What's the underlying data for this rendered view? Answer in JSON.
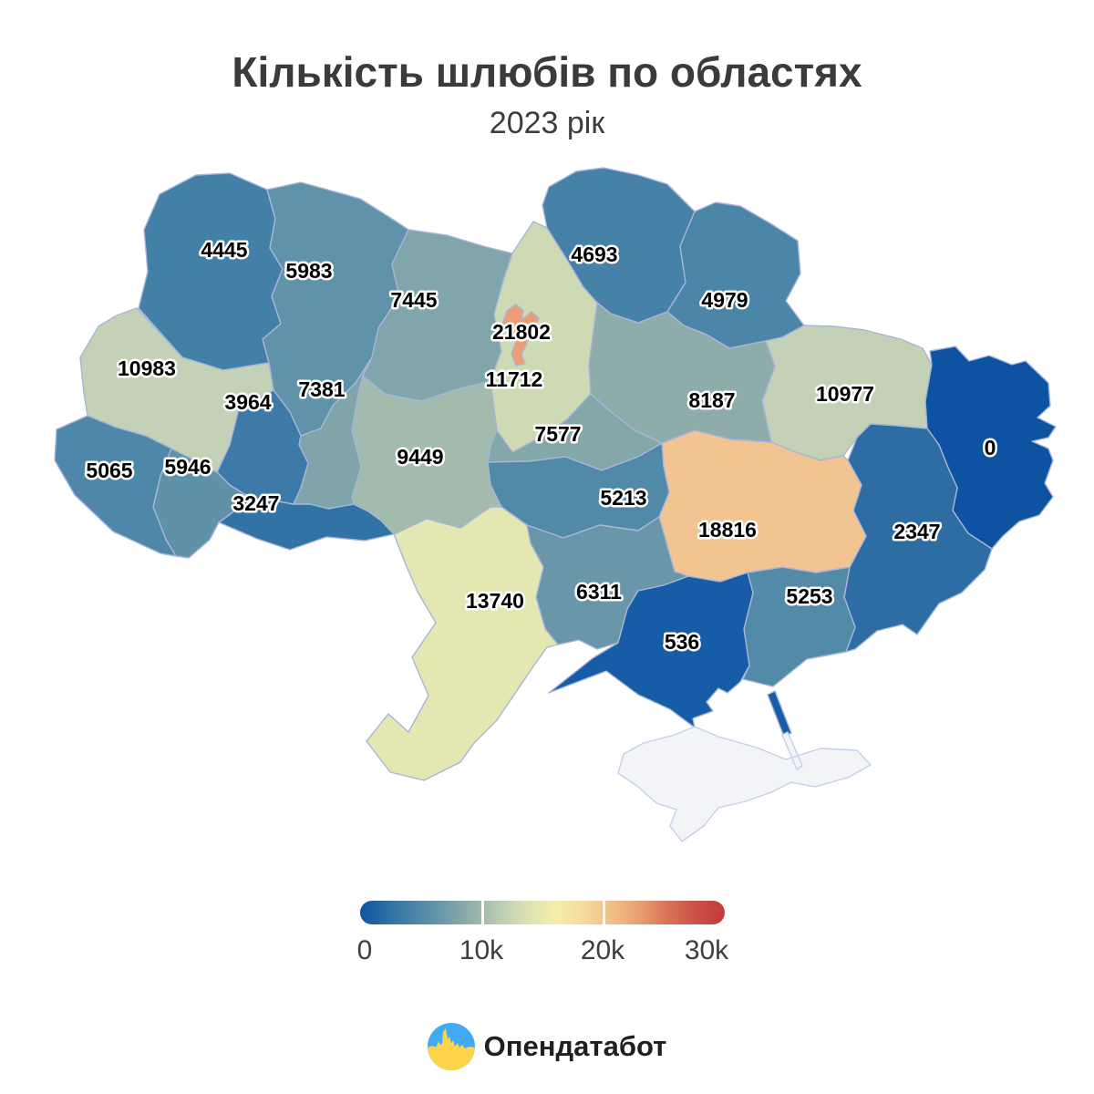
{
  "header": {
    "title": "Кількість шлюбів по областях",
    "subtitle": "2023 рік",
    "title_color": "#3b3b3b"
  },
  "legend": {
    "tick_labels": [
      "0",
      "10k",
      "20k",
      "30k"
    ],
    "gradient_stops": [
      "#0d54a1",
      "#2e6fa4",
      "#4d86a8",
      "#6d9aa9",
      "#93b0ab",
      "#bccdb4",
      "#dde3b1",
      "#f5eeaa",
      "#f5d9a0",
      "#f1bd88",
      "#e89d72",
      "#da7157",
      "#cb4f45",
      "#c13c3c"
    ]
  },
  "footer": {
    "brand": "Опендатабот",
    "logo": {
      "icon": "opendatabot-flag-pulse-icon",
      "blue": "#42aaf4",
      "yellow": "#ffd348"
    }
  },
  "chart_data": {
    "type": "choropleth",
    "title": "Кількість шлюбів по областях",
    "subtitle": "2023 рік",
    "colorbar": {
      "min": 0,
      "max": 30000,
      "ticks": [
        "0",
        "10k",
        "20k",
        "30k"
      ]
    },
    "border_color": "#a8b5d9",
    "regions": [
      {
        "id": "volyn",
        "value": 4445,
        "color": "#4380a8"
      },
      {
        "id": "rivne",
        "value": 5983,
        "color": "#6093a9"
      },
      {
        "id": "zhytomyr",
        "value": 7445,
        "color": "#80a5aa"
      },
      {
        "id": "kyiv_oblast",
        "value": 11712,
        "color": "#cedab4"
      },
      {
        "id": "kyiv_city",
        "value": 21802,
        "color": "#ed9d74"
      },
      {
        "id": "chernihiv",
        "value": 4693,
        "color": "#4682a8"
      },
      {
        "id": "sumy",
        "value": 4979,
        "color": "#4b85a8"
      },
      {
        "id": "kharkiv",
        "value": 10977,
        "color": "#c3d2b6"
      },
      {
        "id": "luhansk",
        "value": 0,
        "color": "#0d53a1"
      },
      {
        "id": "donetsk",
        "value": 2347,
        "color": "#2d6da4"
      },
      {
        "id": "zaporizhzhia",
        "value": 5253,
        "color": "#528aa8"
      },
      {
        "id": "dnipro",
        "value": 18816,
        "color": "#f2c492"
      },
      {
        "id": "poltava",
        "value": 8187,
        "color": "#8eadaa"
      },
      {
        "id": "cherkasy",
        "value": 7577,
        "color": "#84a7aa"
      },
      {
        "id": "kirovohrad",
        "value": 5213,
        "color": "#5189a8"
      },
      {
        "id": "mykolaiv",
        "value": 6311,
        "color": "#6997a9"
      },
      {
        "id": "kherson",
        "value": 536,
        "color": "#175ca6"
      },
      {
        "id": "odesa",
        "value": 13740,
        "color": "#e5e7b2"
      },
      {
        "id": "vinnytsia",
        "value": 9449,
        "color": "#a2bbac"
      },
      {
        "id": "khmelnytskyi",
        "value": 7381,
        "color": "#7fa4aa"
      },
      {
        "id": "ternopil",
        "value": 3964,
        "color": "#3d7aa7"
      },
      {
        "id": "chernivtsi",
        "value": 3247,
        "color": "#3273a5"
      },
      {
        "id": "ivano_frankivsk",
        "value": 5946,
        "color": "#5f92a9"
      },
      {
        "id": "lviv",
        "value": 10983,
        "color": "#c3d2b6"
      },
      {
        "id": "zakarpattia",
        "value": 5065,
        "color": "#4e87a9"
      },
      {
        "id": "crimea",
        "value": null,
        "color": "#f3f4f7",
        "border_color": "#c6cfe8"
      }
    ]
  }
}
